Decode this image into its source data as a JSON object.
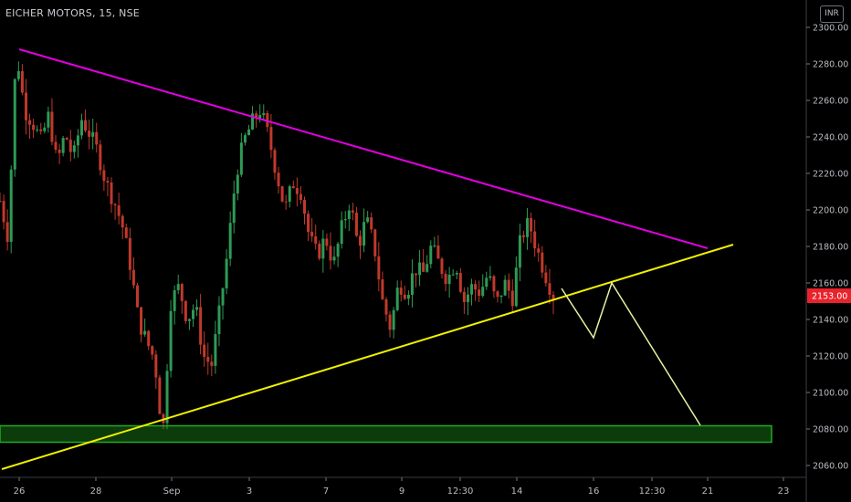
{
  "header": {
    "symbol": "EICHER MOTORS, 15, NSE",
    "currency_label": "INR"
  },
  "price_axis": {
    "ticks": [
      "2300.00",
      "2280.00",
      "2260.00",
      "2240.00",
      "2220.00",
      "2200.00",
      "2180.00",
      "2160.00",
      "2140.00",
      "2120.00",
      "2100.00",
      "2080.00",
      "2060.00"
    ],
    "last_price_label": "2153.00"
  },
  "time_axis": {
    "labels": [
      "26",
      "28",
      "Sep",
      "3",
      "7",
      "9",
      "12:30",
      "14",
      "16",
      "12:30",
      "21",
      "23"
    ]
  },
  "colors": {
    "background": "#000000",
    "candle_up": "#2e9a55",
    "candle_down": "#c0392b",
    "resistance_line": "#e100e1",
    "support_line": "#f0f000",
    "projection_line": "#e8f0a0",
    "support_zone": "#22aa22",
    "last_price_badge": "#e8232b"
  },
  "chart_data": {
    "type": "candlestick",
    "symbol": "EICHER MOTORS",
    "interval": "15",
    "exchange": "NSE",
    "y_range": [
      2052,
      2308
    ],
    "last_price": 2153.0,
    "close_path": [
      [
        "26",
        2205
      ],
      [
        "26",
        2185
      ],
      [
        "26",
        2288
      ],
      [
        "26",
        2255
      ],
      [
        "26",
        2248
      ],
      [
        "27",
        2238
      ],
      [
        "27",
        2252
      ],
      [
        "27",
        2225
      ],
      [
        "27",
        2242
      ],
      [
        "27",
        2228
      ],
      [
        "28",
        2250
      ],
      [
        "28",
        2242
      ],
      [
        "28",
        2232
      ],
      [
        "28",
        2215
      ],
      [
        "28",
        2205
      ],
      [
        "29",
        2192
      ],
      [
        "29",
        2170
      ],
      [
        "29",
        2140
      ],
      [
        "29",
        2128
      ],
      [
        "29",
        2118
      ],
      [
        "Sep",
        2076
      ],
      [
        "Sep",
        2150
      ],
      [
        "Sep",
        2158
      ],
      [
        "Sep",
        2140
      ],
      [
        "Sep",
        2148
      ],
      [
        "2",
        2120
      ],
      [
        "2",
        2115
      ],
      [
        "2",
        2145
      ],
      [
        "2",
        2178
      ],
      [
        "2",
        2220
      ],
      [
        "3",
        2238
      ],
      [
        "3",
        2248
      ],
      [
        "3",
        2255
      ],
      [
        "3",
        2240
      ],
      [
        "3",
        2220
      ],
      [
        "4",
        2200
      ],
      [
        "4",
        2215
      ],
      [
        "4",
        2210
      ],
      [
        "4",
        2185
      ],
      [
        "4",
        2175
      ],
      [
        "7",
        2185
      ],
      [
        "7",
        2170
      ],
      [
        "7",
        2190
      ],
      [
        "7",
        2205
      ],
      [
        "7",
        2180
      ],
      [
        "8",
        2195
      ],
      [
        "8",
        2180
      ],
      [
        "8",
        2150
      ],
      [
        "8",
        2135
      ],
      [
        "8",
        2160
      ],
      [
        "9",
        2155
      ],
      [
        "9",
        2168
      ],
      [
        "9",
        2165
      ],
      [
        "9",
        2180
      ],
      [
        "9",
        2170
      ],
      [
        "10",
        2162
      ],
      [
        "10",
        2172
      ],
      [
        "10",
        2150
      ],
      [
        "10",
        2158
      ],
      [
        "10",
        2155
      ],
      [
        "12:30",
        2165
      ],
      [
        "12:30",
        2148
      ],
      [
        "12:30",
        2160
      ],
      [
        "12:30",
        2152
      ],
      [
        "14",
        2185
      ],
      [
        "14",
        2193
      ],
      [
        "14",
        2178
      ],
      [
        "14",
        2165
      ],
      [
        "14",
        2153
      ]
    ],
    "annotations": [
      {
        "name": "descending resistance",
        "from": [
          "26",
          2288
        ],
        "to": [
          "21",
          2178
        ]
      },
      {
        "name": "ascending support",
        "from": [
          "26",
          2057
        ],
        "to": [
          "21",
          2180
        ]
      },
      {
        "name": "projected path",
        "points": [
          [
            "15",
            2156
          ],
          [
            "16",
            2128
          ],
          [
            "16.5",
            2158
          ],
          [
            "20.5",
            2081
          ]
        ]
      },
      {
        "name": "support zone",
        "y_range": [
          2073,
          2082
        ]
      }
    ]
  }
}
